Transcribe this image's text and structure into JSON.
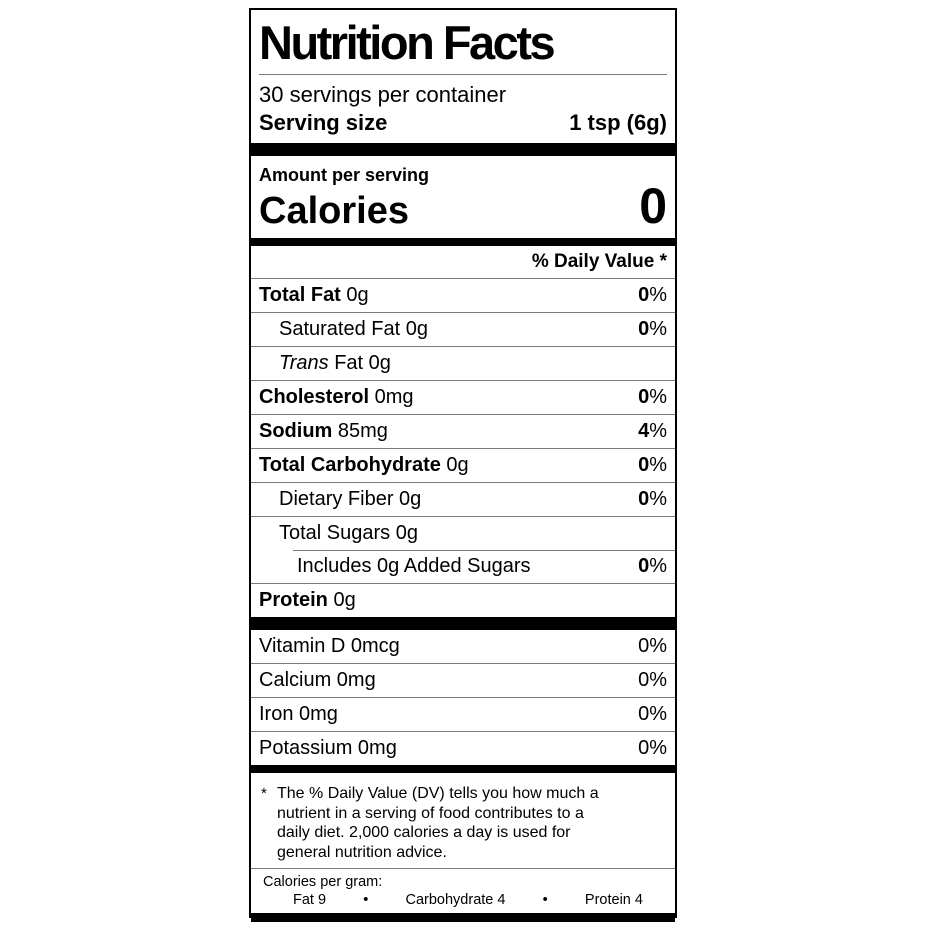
{
  "colors": {
    "text": "#000000",
    "rule": "#7a7a7a",
    "bar": "#000000",
    "background": "#ffffff"
  },
  "label": {
    "title": "Nutrition Facts",
    "servings_per_container": "30 servings per container",
    "serving_size": {
      "label": "Serving size",
      "value": "1 tsp (6g)"
    },
    "amount_per_serving": "Amount per serving",
    "calories": {
      "label": "Calories",
      "value": "0"
    },
    "daily_value_header": "% Daily Value *",
    "nutrient_rows": [
      {
        "parts": [
          {
            "text": "Total Fat",
            "style": "bold"
          },
          {
            "text": " 0g",
            "style": "regular"
          }
        ],
        "dv": {
          "number": "0",
          "percent": "%",
          "bold": true
        },
        "indent": 0,
        "divider_above": "full"
      },
      {
        "parts": [
          {
            "text": "Saturated Fat 0g",
            "style": "regular"
          }
        ],
        "dv": {
          "number": "0",
          "percent": "%",
          "bold": true
        },
        "indent": 1,
        "divider_above": "full"
      },
      {
        "parts": [
          {
            "text": "Trans",
            "style": "italic"
          },
          {
            "text": " Fat 0g",
            "style": "regular"
          }
        ],
        "dv": null,
        "indent": 1,
        "divider_above": "full"
      },
      {
        "parts": [
          {
            "text": "Cholesterol",
            "style": "bold"
          },
          {
            "text": " 0mg",
            "style": "regular"
          }
        ],
        "dv": {
          "number": "0",
          "percent": "%",
          "bold": true
        },
        "indent": 0,
        "divider_above": "full"
      },
      {
        "parts": [
          {
            "text": "Sodium",
            "style": "bold"
          },
          {
            "text": " 85mg",
            "style": "regular"
          }
        ],
        "dv": {
          "number": "4",
          "percent": "%",
          "bold": true
        },
        "indent": 0,
        "divider_above": "full"
      },
      {
        "parts": [
          {
            "text": "Total Carbohydrate",
            "style": "bold"
          },
          {
            "text": " 0g",
            "style": "regular"
          }
        ],
        "dv": {
          "number": "0",
          "percent": "%",
          "bold": true
        },
        "indent": 0,
        "divider_above": "full"
      },
      {
        "parts": [
          {
            "text": "Dietary Fiber 0g",
            "style": "regular"
          }
        ],
        "dv": {
          "number": "0",
          "percent": "%",
          "bold": true
        },
        "indent": 1,
        "divider_above": "full"
      },
      {
        "parts": [
          {
            "text": "Total Sugars 0g",
            "style": "regular"
          }
        ],
        "dv": null,
        "indent": 1,
        "divider_above": "full"
      },
      {
        "parts": [
          {
            "text": "Includes 0g Added Sugars",
            "style": "regular"
          }
        ],
        "dv": {
          "number": "0",
          "percent": "%",
          "bold": true
        },
        "indent": 2,
        "divider_above": "inset"
      },
      {
        "parts": [
          {
            "text": "Protein",
            "style": "bold"
          },
          {
            "text": " 0g",
            "style": "regular"
          }
        ],
        "dv": null,
        "indent": 0,
        "divider_above": "full"
      }
    ],
    "micronutrient_rows": [
      {
        "parts": [
          {
            "text": "Vitamin D 0mcg",
            "style": "regular"
          }
        ],
        "dv": {
          "number": "0",
          "percent": "%",
          "bold": false
        },
        "indent": 0,
        "divider_above": "none"
      },
      {
        "parts": [
          {
            "text": "Calcium 0mg",
            "style": "regular"
          }
        ],
        "dv": {
          "number": "0",
          "percent": "%",
          "bold": false
        },
        "indent": 0,
        "divider_above": "full"
      },
      {
        "parts": [
          {
            "text": "Iron 0mg",
            "style": "regular"
          }
        ],
        "dv": {
          "number": "0",
          "percent": "%",
          "bold": false
        },
        "indent": 0,
        "divider_above": "full"
      },
      {
        "parts": [
          {
            "text": "Potassium 0mg",
            "style": "regular"
          }
        ],
        "dv": {
          "number": "0",
          "percent": "%",
          "bold": false
        },
        "indent": 0,
        "divider_above": "full"
      }
    ],
    "footnote": {
      "marker": "*",
      "text": "The % Daily Value (DV) tells you how much a nutrient in a serving of food contributes to a daily diet. 2,000 calories a day is used for general nutrition advice."
    },
    "calories_per_gram": {
      "heading": "Calories per gram:",
      "entries": [
        "Fat 9",
        "Carbohydrate 4",
        "Protein 4"
      ],
      "separator": "•"
    }
  }
}
